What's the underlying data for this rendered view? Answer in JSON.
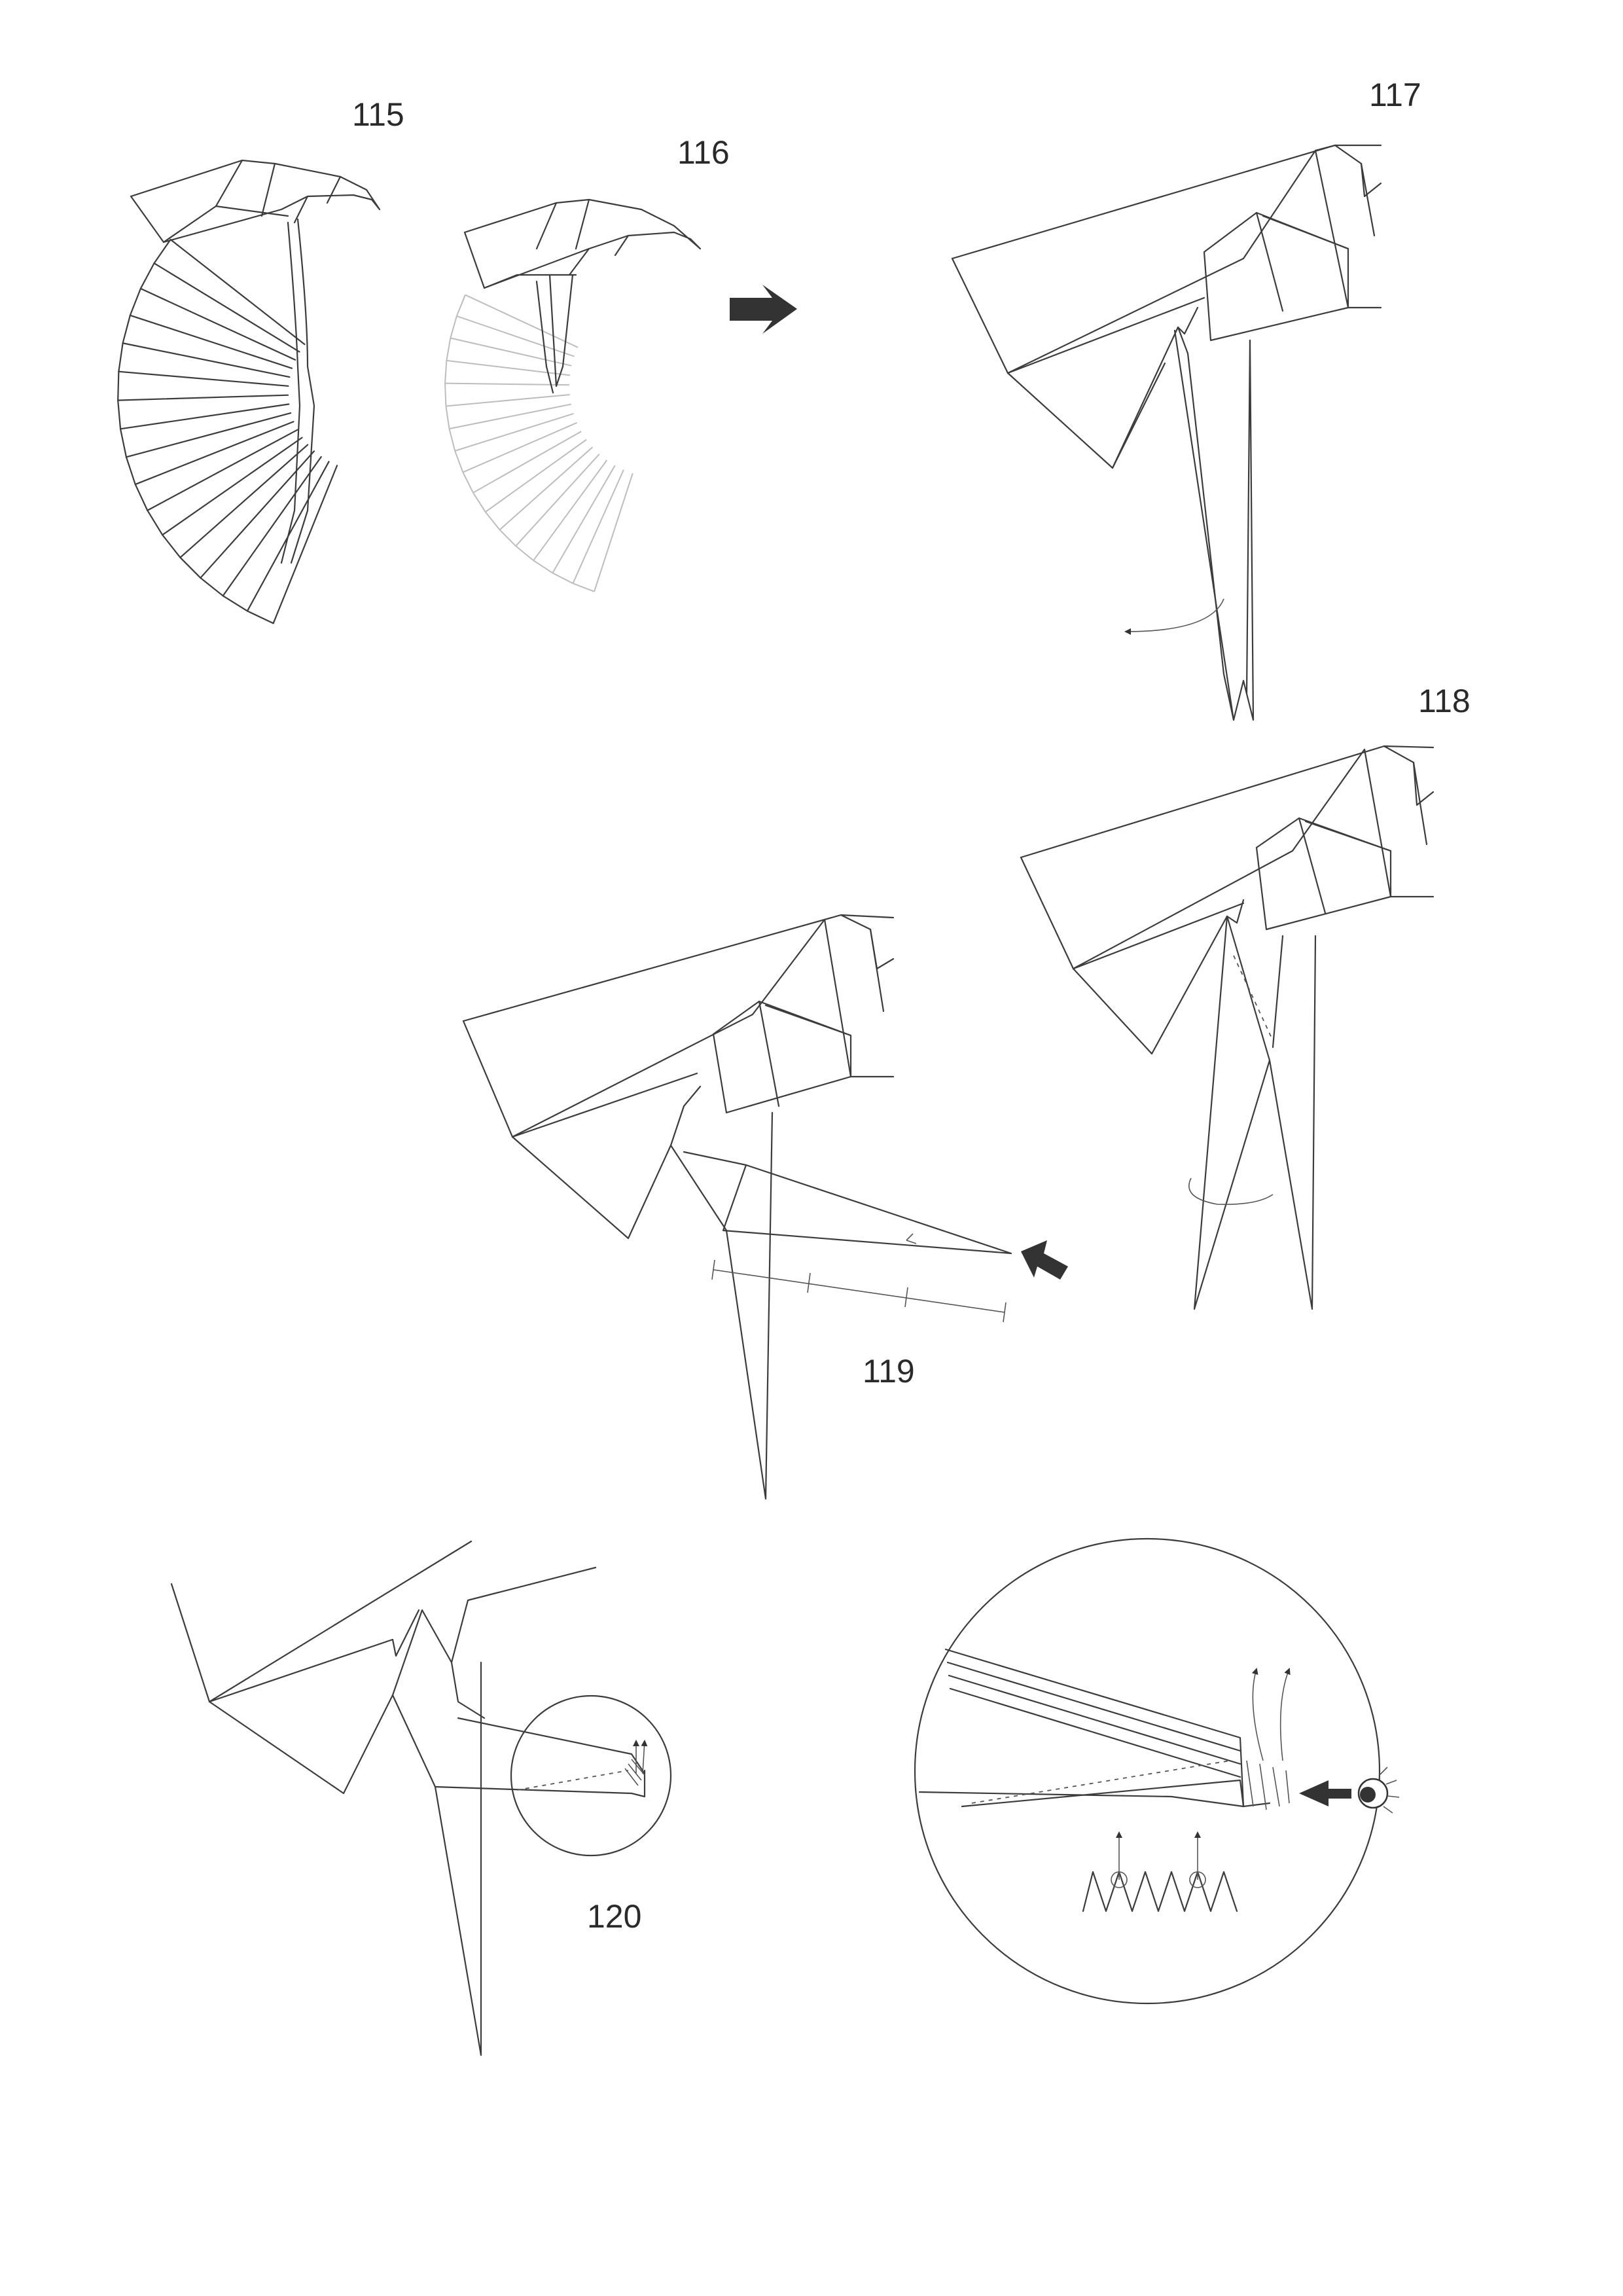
{
  "steps": [
    {
      "id": "115",
      "label": "115"
    },
    {
      "id": "116",
      "label": "116"
    },
    {
      "id": "117",
      "label": "117"
    },
    {
      "id": "118",
      "label": "118"
    },
    {
      "id": "119",
      "label": "119"
    },
    {
      "id": "120",
      "label": "120"
    }
  ],
  "symbols": {
    "next_arrow": "arrow-right-icon",
    "push_arrow": "push-arrow-icon",
    "view_eye": "eye-icon",
    "fold_arrow": "curved-arrow-icon"
  }
}
